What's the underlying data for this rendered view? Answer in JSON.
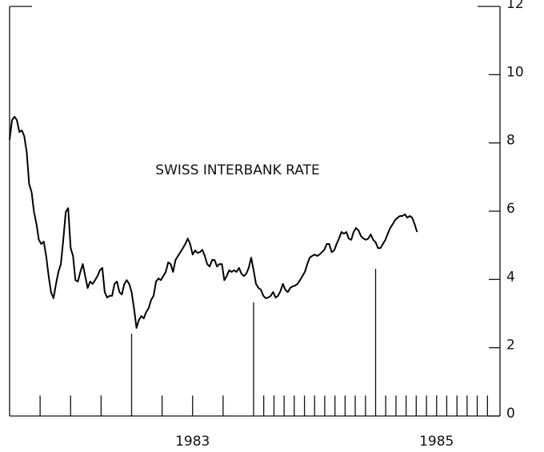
{
  "chart_data": {
    "type": "line",
    "annotation": "SWISS INTERBANK RATE",
    "color": "#000000",
    "xlim": [
      1982,
      1986
    ],
    "ylim": [
      0,
      12
    ],
    "yticks": [
      0,
      2,
      4,
      6,
      8,
      10,
      12
    ],
    "xticks": [
      {
        "value": 1983.5,
        "label": "1983"
      },
      {
        "value": 1985.5,
        "label": "1985"
      }
    ],
    "year_lines": [
      {
        "value": 1983,
        "height": 2.41
      },
      {
        "value": 1984,
        "height": 3.33
      },
      {
        "value": 1985,
        "height": 4.31
      }
    ],
    "minor_tick_height": 0.6,
    "minor_ticks": [
      1982.25,
      1982.5,
      1982.75,
      1983.25,
      1983.5,
      1983.75,
      1984.083,
      1984.167,
      1984.25,
      1984.333,
      1984.417,
      1984.5,
      1984.583,
      1984.667,
      1984.75,
      1984.833,
      1984.917,
      1985.083,
      1985.167,
      1985.25,
      1985.333,
      1985.417,
      1985.5,
      1985.583,
      1985.667,
      1985.75,
      1985.833,
      1985.917
    ],
    "x": [
      1982,
      1982.02,
      1982.04,
      1982.06,
      1982.08,
      1982.1,
      1982.12,
      1982.14,
      1982.16,
      1982.18,
      1982.2,
      1982.22,
      1982.24,
      1982.26,
      1982.28,
      1982.3,
      1982.32,
      1982.34,
      1982.36,
      1982.38,
      1982.4,
      1982.42,
      1982.44,
      1982.46,
      1982.48,
      1982.5,
      1982.52,
      1982.54,
      1982.56,
      1982.58,
      1982.6,
      1982.62,
      1982.64,
      1982.66,
      1982.68,
      1982.7,
      1982.72,
      1982.74,
      1982.76,
      1982.78,
      1982.8,
      1982.82,
      1982.84,
      1982.86,
      1982.88,
      1982.9,
      1982.92,
      1982.94,
      1982.96,
      1982.98,
      1983,
      1983.02,
      1983.04,
      1983.06,
      1983.08,
      1983.1,
      1983.12,
      1983.14,
      1983.16,
      1983.18,
      1983.2,
      1983.22,
      1983.24,
      1983.26,
      1983.28,
      1983.3,
      1983.32,
      1983.34,
      1983.36,
      1983.38,
      1983.4,
      1983.42,
      1983.44,
      1983.46,
      1983.48,
      1983.5,
      1983.52,
      1983.54,
      1983.56,
      1983.58,
      1983.6,
      1983.62,
      1983.64,
      1983.66,
      1983.68,
      1983.7,
      1983.72,
      1983.74,
      1983.76,
      1983.78,
      1983.8,
      1983.82,
      1983.84,
      1983.86,
      1983.88,
      1983.9,
      1983.92,
      1983.94,
      1983.96,
      1983.98,
      1984,
      1984.02,
      1984.04,
      1984.06,
      1984.08,
      1984.1,
      1984.12,
      1984.14,
      1984.16,
      1984.18,
      1984.2,
      1984.22,
      1984.24,
      1984.26,
      1984.28,
      1984.3,
      1984.32,
      1984.34,
      1984.36,
      1984.38,
      1984.4,
      1984.42,
      1984.44,
      1984.46,
      1984.48,
      1984.5,
      1984.52,
      1984.54,
      1984.56,
      1984.58,
      1984.6,
      1984.62,
      1984.64,
      1984.66,
      1984.68,
      1984.7,
      1984.72,
      1984.74,
      1984.76,
      1984.78,
      1984.8,
      1984.82,
      1984.84,
      1984.86,
      1984.88,
      1984.9,
      1984.92,
      1984.94,
      1984.96,
      1984.98,
      1985,
      1985.02,
      1985.04,
      1985.06,
      1985.08,
      1985.1,
      1985.12,
      1985.14,
      1985.16,
      1985.18,
      1985.2,
      1985.22,
      1985.24,
      1985.26,
      1985.28,
      1985.3,
      1985.32,
      1985.34
    ],
    "values": [
      8.09,
      8.67,
      8.77,
      8.67,
      8.32,
      8.37,
      8.2,
      7.73,
      6.8,
      6.56,
      5.98,
      5.62,
      5.16,
      5.04,
      5.11,
      4.69,
      4.1,
      3.63,
      3.45,
      3.87,
      4.22,
      4.45,
      5.16,
      5.98,
      6.09,
      4.92,
      4.69,
      3.98,
      3.94,
      4.22,
      4.45,
      4.1,
      3.75,
      3.94,
      3.87,
      3.98,
      4.1,
      4.27,
      4.34,
      3.63,
      3.47,
      3.52,
      3.52,
      3.87,
      3.94,
      3.63,
      3.56,
      3.87,
      3.98,
      3.87,
      3.63,
      3.16,
      2.58,
      2.81,
      2.93,
      2.86,
      3.05,
      3.16,
      3.4,
      3.52,
      3.94,
      4.03,
      3.98,
      4.1,
      4.22,
      4.5,
      4.45,
      4.22,
      4.57,
      4.69,
      4.8,
      4.92,
      5.04,
      5.2,
      5.04,
      4.73,
      4.85,
      4.78,
      4.8,
      4.87,
      4.69,
      4.45,
      4.38,
      4.57,
      4.57,
      4.38,
      4.45,
      4.45,
      3.98,
      4.1,
      4.27,
      4.22,
      4.27,
      4.22,
      4.34,
      4.17,
      4.1,
      4.17,
      4.34,
      4.64,
      4.27,
      3.87,
      3.75,
      3.7,
      3.52,
      3.45,
      3.47,
      3.52,
      3.63,
      3.47,
      3.52,
      3.66,
      3.87,
      3.7,
      3.63,
      3.75,
      3.8,
      3.82,
      3.87,
      3.98,
      4.1,
      4.22,
      4.45,
      4.64,
      4.69,
      4.73,
      4.69,
      4.73,
      4.8,
      4.87,
      5.04,
      5.04,
      4.8,
      4.85,
      5.04,
      5.2,
      5.39,
      5.34,
      5.39,
      5.2,
      5.16,
      5.39,
      5.51,
      5.44,
      5.27,
      5.2,
      5.16,
      5.2,
      5.32,
      5.16,
      5.09,
      4.92,
      4.92,
      5.04,
      5.16,
      5.34,
      5.51,
      5.62,
      5.74,
      5.81,
      5.86,
      5.86,
      5.91,
      5.81,
      5.86,
      5.81,
      5.62,
      5.39
    ]
  }
}
